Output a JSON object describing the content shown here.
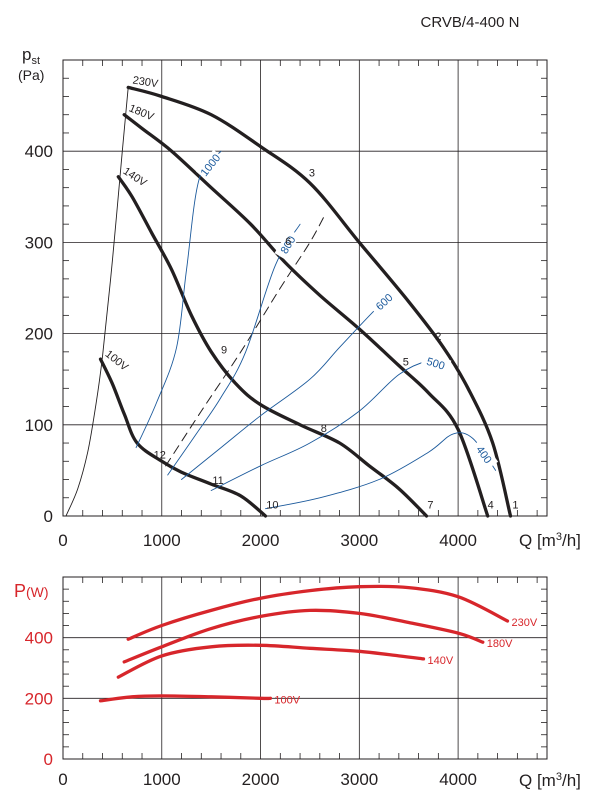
{
  "title": "CRVB/4-400 N",
  "chart_data": [
    {
      "type": "line",
      "name": "pressure-curves",
      "ylabel_main": "p",
      "ylabel_sub": "st",
      "yunit": "(Pa)",
      "xlabel": "Q [m³/h]",
      "xlim": [
        0,
        4900
      ],
      "ylim": [
        0,
        500
      ],
      "x_ticks": [
        0,
        1000,
        2000,
        3000,
        4000
      ],
      "y_ticks": [
        0,
        100,
        200,
        300,
        400
      ],
      "grid": true,
      "series": [
        {
          "name": "230V",
          "label": "230V",
          "color": "#231f20",
          "points": [
            [
              660,
              470
            ],
            [
              1000,
              460
            ],
            [
              1500,
              440
            ],
            [
              2000,
              405
            ],
            [
              2500,
              365
            ],
            [
              3000,
              300
            ],
            [
              3500,
              235
            ],
            [
              3850,
              185
            ],
            [
              4100,
              140
            ],
            [
              4350,
              80
            ],
            [
              4530,
              0
            ]
          ]
        },
        {
          "name": "180V",
          "label": "180V",
          "color": "#231f20",
          "points": [
            [
              620,
              440
            ],
            [
              800,
              425
            ],
            [
              1100,
              400
            ],
            [
              1500,
              360
            ],
            [
              1900,
              320
            ],
            [
              2250,
              278
            ],
            [
              2600,
              242
            ],
            [
              3000,
              205
            ],
            [
              3400,
              165
            ],
            [
              3700,
              135
            ],
            [
              4000,
              95
            ],
            [
              4300,
              0
            ]
          ]
        },
        {
          "name": "140V",
          "label": "140V",
          "color": "#231f20",
          "points": [
            [
              560,
              372
            ],
            [
              700,
              350
            ],
            [
              900,
              310
            ],
            [
              1100,
              270
            ],
            [
              1300,
              220
            ],
            [
              1500,
              180
            ],
            [
              1750,
              145
            ],
            [
              2000,
              122
            ],
            [
              2400,
              100
            ],
            [
              2800,
              80
            ],
            [
              3100,
              55
            ],
            [
              3400,
              30
            ],
            [
              3680,
              0
            ]
          ]
        },
        {
          "name": "100V",
          "label": "100V",
          "color": "#231f20",
          "points": [
            [
              380,
              172
            ],
            [
              500,
              145
            ],
            [
              620,
              112
            ],
            [
              750,
              80
            ],
            [
              1000,
              60
            ],
            [
              1200,
              48
            ],
            [
              1500,
              35
            ],
            [
              1800,
              22
            ],
            [
              2050,
              0
            ]
          ]
        },
        {
          "name": "system-thin",
          "label": "",
          "color": "#231f20",
          "thin": true,
          "points": [
            [
              30,
              0
            ],
            [
              150,
              30
            ],
            [
              250,
              70
            ],
            [
              330,
              120
            ],
            [
              400,
              175
            ],
            [
              500,
              280
            ],
            [
              600,
              400
            ],
            [
              660,
              470
            ]
          ]
        },
        {
          "name": "system-dashed",
          "label": "",
          "color": "#231f20",
          "dashed": true,
          "points": [
            [
              1040,
              55
            ],
            [
              1400,
              115
            ],
            [
              1800,
              180
            ],
            [
              2200,
              250
            ],
            [
              2500,
              300
            ],
            [
              2650,
              330
            ]
          ]
        },
        {
          "name": "iso-1000",
          "label": "1000",
          "color": "#1c5a9c",
          "thin": true,
          "points": [
            [
              740,
              75
            ],
            [
              950,
              125
            ],
            [
              1150,
              185
            ],
            [
              1250,
              270
            ],
            [
              1380,
              370
            ],
            [
              1600,
              400
            ]
          ]
        },
        {
          "name": "iso-800",
          "label": "800",
          "color": "#1c5a9c",
          "thin": true,
          "points": [
            [
              1060,
              45
            ],
            [
              1350,
              90
            ],
            [
              1600,
              130
            ],
            [
              1850,
              180
            ],
            [
              2150,
              275
            ],
            [
              2400,
              320
            ]
          ]
        },
        {
          "name": "iso-600",
          "label": "600",
          "color": "#1c5a9c",
          "thin": true,
          "points": [
            [
              1200,
              40
            ],
            [
              1600,
              75
            ],
            [
              2000,
              110
            ],
            [
              2500,
              150
            ],
            [
              2800,
              185
            ],
            [
              3150,
              225
            ],
            [
              3350,
              245
            ]
          ]
        },
        {
          "name": "iso-500",
          "label": "500",
          "color": "#1c5a9c",
          "thin": true,
          "points": [
            [
              1500,
              28
            ],
            [
              2000,
              55
            ],
            [
              2500,
              80
            ],
            [
              3000,
              115
            ],
            [
              3400,
              155
            ],
            [
              3700,
              170
            ],
            [
              3850,
              165
            ]
          ]
        },
        {
          "name": "iso-400",
          "label": "400",
          "color": "#1c5a9c",
          "thin": true,
          "points": [
            [
              2050,
              8
            ],
            [
              2600,
              20
            ],
            [
              3200,
              40
            ],
            [
              3700,
              70
            ],
            [
              3950,
              90
            ],
            [
              4150,
              85
            ],
            [
              4380,
              50
            ]
          ]
        }
      ],
      "annotations": [
        {
          "text": "1",
          "x": 4580,
          "y": 8
        },
        {
          "text": "2",
          "x": 3800,
          "y": 193
        },
        {
          "text": "3",
          "x": 2520,
          "y": 372
        },
        {
          "text": "4",
          "x": 4330,
          "y": 8
        },
        {
          "text": "5",
          "x": 3470,
          "y": 165
        },
        {
          "text": "6",
          "x": 2280,
          "y": 297
        },
        {
          "text": "7",
          "x": 3720,
          "y": 8
        },
        {
          "text": "8",
          "x": 2640,
          "y": 92
        },
        {
          "text": "9",
          "x": 1630,
          "y": 178
        },
        {
          "text": "10",
          "x": 2120,
          "y": 8
        },
        {
          "text": "11",
          "x": 1570,
          "y": 35
        },
        {
          "text": "12",
          "x": 980,
          "y": 63
        }
      ]
    },
    {
      "type": "line",
      "name": "power-curves",
      "ylabel_main": "P",
      "yunit": "(W)",
      "xlabel": "Q [m³/h]",
      "xlim": [
        0,
        4900
      ],
      "ylim": [
        0,
        600
      ],
      "x_ticks": [
        0,
        1000,
        2000,
        3000,
        4000
      ],
      "y_ticks": [
        0,
        200,
        400
      ],
      "grid": true,
      "series": [
        {
          "name": "230V",
          "label": "230V",
          "color": "#d7262b",
          "points": [
            [
              660,
              395
            ],
            [
              1000,
              440
            ],
            [
              1500,
              490
            ],
            [
              2000,
              530
            ],
            [
              2500,
              555
            ],
            [
              3000,
              568
            ],
            [
              3500,
              565
            ],
            [
              4000,
              535
            ],
            [
              4500,
              455
            ]
          ]
        },
        {
          "name": "180V",
          "label": "180V",
          "color": "#d7262b",
          "points": [
            [
              620,
              320
            ],
            [
              1000,
              370
            ],
            [
              1500,
              430
            ],
            [
              2000,
              470
            ],
            [
              2500,
              490
            ],
            [
              3000,
              480
            ],
            [
              3500,
              450
            ],
            [
              4000,
              415
            ],
            [
              4250,
              385
            ]
          ]
        },
        {
          "name": "140V",
          "label": "140V",
          "color": "#d7262b",
          "points": [
            [
              560,
              270
            ],
            [
              1000,
              340
            ],
            [
              1500,
              370
            ],
            [
              2000,
              375
            ],
            [
              2500,
              365
            ],
            [
              3000,
              355
            ],
            [
              3400,
              340
            ],
            [
              3650,
              330
            ]
          ]
        },
        {
          "name": "100V",
          "label": "100V",
          "color": "#d7262b",
          "points": [
            [
              380,
              192
            ],
            [
              700,
              205
            ],
            [
              1000,
              208
            ],
            [
              1500,
              205
            ],
            [
              2000,
              200
            ],
            [
              2100,
              200
            ]
          ]
        }
      ]
    }
  ]
}
